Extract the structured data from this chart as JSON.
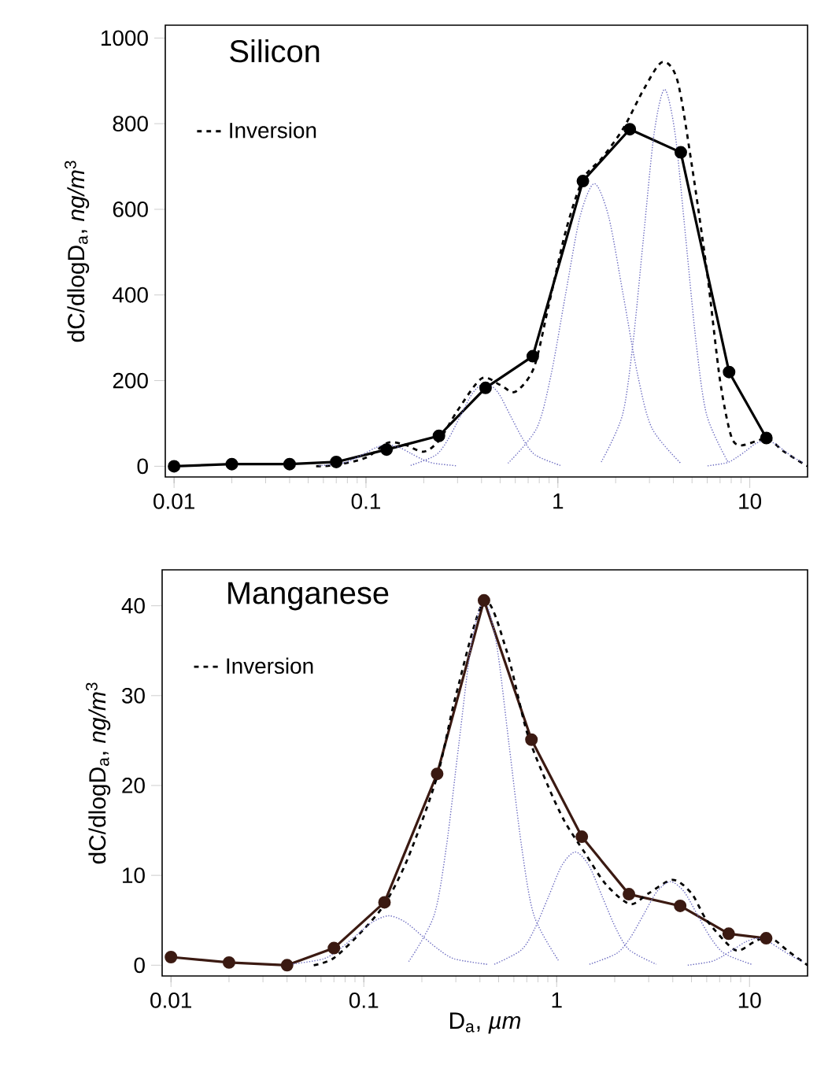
{
  "chart_data": [
    {
      "type": "line",
      "title": "Silicon",
      "ylabel": "dC/dlogD$_{a}$, *ng/m*$^{3}$",
      "log": "x",
      "xlim": [
        0.009,
        20
      ],
      "ylim": [
        -25,
        1030
      ],
      "xticks": [
        0.01,
        0.1,
        1,
        10
      ],
      "yticks": [
        0,
        200,
        400,
        600,
        800,
        1000
      ],
      "legend": "top left",
      "grid": false,
      "series": [
        {
          "color": "#000000",
          "marker": "circle",
          "line_style": "solid",
          "x": [
            0.01,
            0.02,
            0.04,
            0.07,
            0.128,
            0.24,
            0.42,
            0.74,
            1.35,
            2.37,
            4.37,
            7.8,
            12.2
          ],
          "values": [
            0,
            5,
            5,
            10,
            39,
            71,
            183,
            257,
            666,
            787,
            733,
            220,
            66
          ]
        },
        {
          "name": "Inversion",
          "color": "#000000",
          "marker": "none",
          "line_style": "dashed",
          "x": [
            0.055,
            0.07,
            0.1,
            0.13,
            0.16,
            0.2,
            0.24,
            0.3,
            0.4,
            0.5,
            0.6,
            0.75,
            0.9,
            1.1,
            1.35,
            1.7,
            2.2,
            2.8,
            3.5,
            4.2,
            5,
            6,
            7,
            8,
            9,
            11,
            12.5,
            15,
            20
          ],
          "values": [
            0,
            3,
            20,
            55,
            50,
            34,
            60,
            130,
            205,
            190,
            174,
            230,
            380,
            550,
            670,
            720,
            790,
            880,
            944,
            900,
            700,
            450,
            200,
            70,
            49,
            60,
            65,
            35,
            0
          ]
        },
        {
          "color": "#6b6bc0",
          "marker": "none",
          "line_style": "dotted",
          "x": [
            0.0568,
            0.0748,
            0.0859,
            0.0986,
            0.1132,
            0.13,
            0.1493,
            0.1714,
            0.1968,
            0.2259,
            0.2979
          ],
          "values": [
            1,
            7,
            16,
            30,
            44,
            50,
            44,
            30,
            16,
            7,
            1
          ]
        },
        {
          "color": "#6b6bc0",
          "marker": "none",
          "line_style": "dotted",
          "x": [
            0.171,
            0.231,
            0.268,
            0.311,
            0.361,
            0.42,
            0.488,
            0.566,
            0.658,
            0.764,
            1.03
          ],
          "values": [
            2,
            26,
            63,
            118,
            172,
            195,
            172,
            118,
            63,
            26,
            2
          ]
        },
        {
          "color": "#6b6bc0",
          "marker": "none",
          "line_style": "dotted",
          "x": [
            0.55,
            0.776,
            0.923,
            1.096,
            1.303,
            1.549,
            1.841,
            2.188,
            2.6,
            3.09,
            4.365
          ],
          "values": [
            7,
            89,
            215,
            401,
            582,
            660,
            582,
            401,
            215,
            89,
            7
          ]
        },
        {
          "color": "#6b6bc0",
          "marker": "none",
          "line_style": "dotted",
          "x": [
            1.683,
            2.168,
            2.46,
            2.793,
            3.17,
            3.597,
            4.083,
            4.634,
            5.26,
            5.97,
            7.691
          ],
          "values": [
            10,
            119,
            286,
            534,
            776,
            880,
            776,
            534,
            286,
            119,
            10
          ]
        },
        {
          "color": "#6b6bc0",
          "marker": "none",
          "line_style": "dotted",
          "x": [
            6.03,
            7.59,
            8.51,
            9.55,
            10.72,
            12.02,
            13.49,
            15.14,
            16.98,
            19.05
          ],
          "values": [
            1,
            8,
            20,
            36,
            53,
            60,
            53,
            36,
            20,
            8
          ]
        }
      ]
    },
    {
      "type": "line",
      "title": "Manganese",
      "xlabel": "D$_{a}$, *µm*",
      "ylabel": "dC/dlogD$_{a}$, *ng/m*$^{3}$",
      "log": "x",
      "xlim": [
        0.009,
        20
      ],
      "ylim": [
        -1.2,
        44
      ],
      "xticks": [
        0.01,
        0.1,
        1,
        10
      ],
      "yticks": [
        0,
        10,
        20,
        30,
        40
      ],
      "legend": "top left",
      "grid": false,
      "series": [
        {
          "color": "#3b1a12",
          "marker": "circle",
          "line_style": "solid",
          "x": [
            0.01,
            0.02,
            0.04,
            0.07,
            0.128,
            0.24,
            0.42,
            0.74,
            1.35,
            2.37,
            4.37,
            7.8,
            12.2
          ],
          "values": [
            0.9,
            0.3,
            0,
            1.9,
            7,
            21.3,
            40.6,
            25.1,
            14.3,
            7.9,
            6.6,
            3.5,
            3
          ]
        },
        {
          "name": "Inversion",
          "color": "#000000",
          "marker": "none",
          "line_style": "dashed",
          "x": [
            0.055,
            0.07,
            0.1,
            0.13,
            0.17,
            0.24,
            0.3,
            0.42,
            0.55,
            0.7,
            0.9,
            1.1,
            1.4,
            1.8,
            2.4,
            3,
            4,
            5,
            6,
            8,
            9,
            11,
            13,
            16,
            20
          ],
          "values": [
            0,
            0.8,
            4,
            7,
            12,
            21,
            30,
            40.5,
            35,
            26,
            20,
            16,
            12.5,
            9,
            6.8,
            8,
            9.5,
            8,
            5,
            2,
            1.7,
            2.8,
            3,
            1.5,
            0
          ]
        },
        {
          "color": "#6b6bc0",
          "marker": "none",
          "line_style": "dotted",
          "x": [
            0.0417,
            0.0617,
            0.075,
            0.0912,
            0.1109,
            0.1349,
            0.1641,
            0.1995,
            0.2427,
            0.2951,
            0.4365
          ],
          "values": [
            0.1,
            0.7,
            1.8,
            3.3,
            4.8,
            5.5,
            4.8,
            3.3,
            1.8,
            0.7,
            0.1
          ]
        },
        {
          "color": "#6b6bc0",
          "marker": "none",
          "line_style": "dotted",
          "x": [
            0.171,
            0.231,
            0.268,
            0.311,
            0.361,
            0.42,
            0.488,
            0.566,
            0.658,
            0.764,
            1.03
          ],
          "values": [
            0.4,
            5.5,
            13.2,
            24.6,
            35.7,
            40.5,
            35.7,
            24.6,
            13.2,
            5.5,
            0.4
          ]
        },
        {
          "color": "#6b6bc0",
          "marker": "none",
          "line_style": "dotted",
          "x": [
            0.475,
            0.656,
            0.771,
            0.906,
            1.064,
            1.25,
            1.469,
            1.726,
            2.028,
            2.382,
            3.289
          ],
          "values": [
            0.1,
            1.7,
            4.1,
            7.6,
            11.1,
            12.6,
            11.1,
            7.6,
            4.1,
            1.7,
            0.1
          ]
        },
        {
          "color": "#6b6bc0",
          "marker": "none",
          "line_style": "dotted",
          "x": [
            1.479,
            2.042,
            2.399,
            2.818,
            3.311,
            3.89,
            4.571,
            5.37,
            6.31,
            7.413,
            10.23
          ],
          "values": [
            0.1,
            1.3,
            3,
            5.6,
            8.2,
            9.3,
            8.2,
            5.6,
            3,
            1.3,
            0.1
          ]
        },
        {
          "color": "#6b6bc0",
          "marker": "none",
          "line_style": "dotted",
          "x": [
            4.786,
            6.31,
            7.244,
            8.318,
            9.55,
            10.96,
            12.59,
            14.45,
            16.6,
            19.05
          ],
          "values": [
            0,
            0.4,
            1,
            1.8,
            2.6,
            3,
            2.6,
            1.8,
            1,
            0.4
          ]
        }
      ]
    }
  ]
}
